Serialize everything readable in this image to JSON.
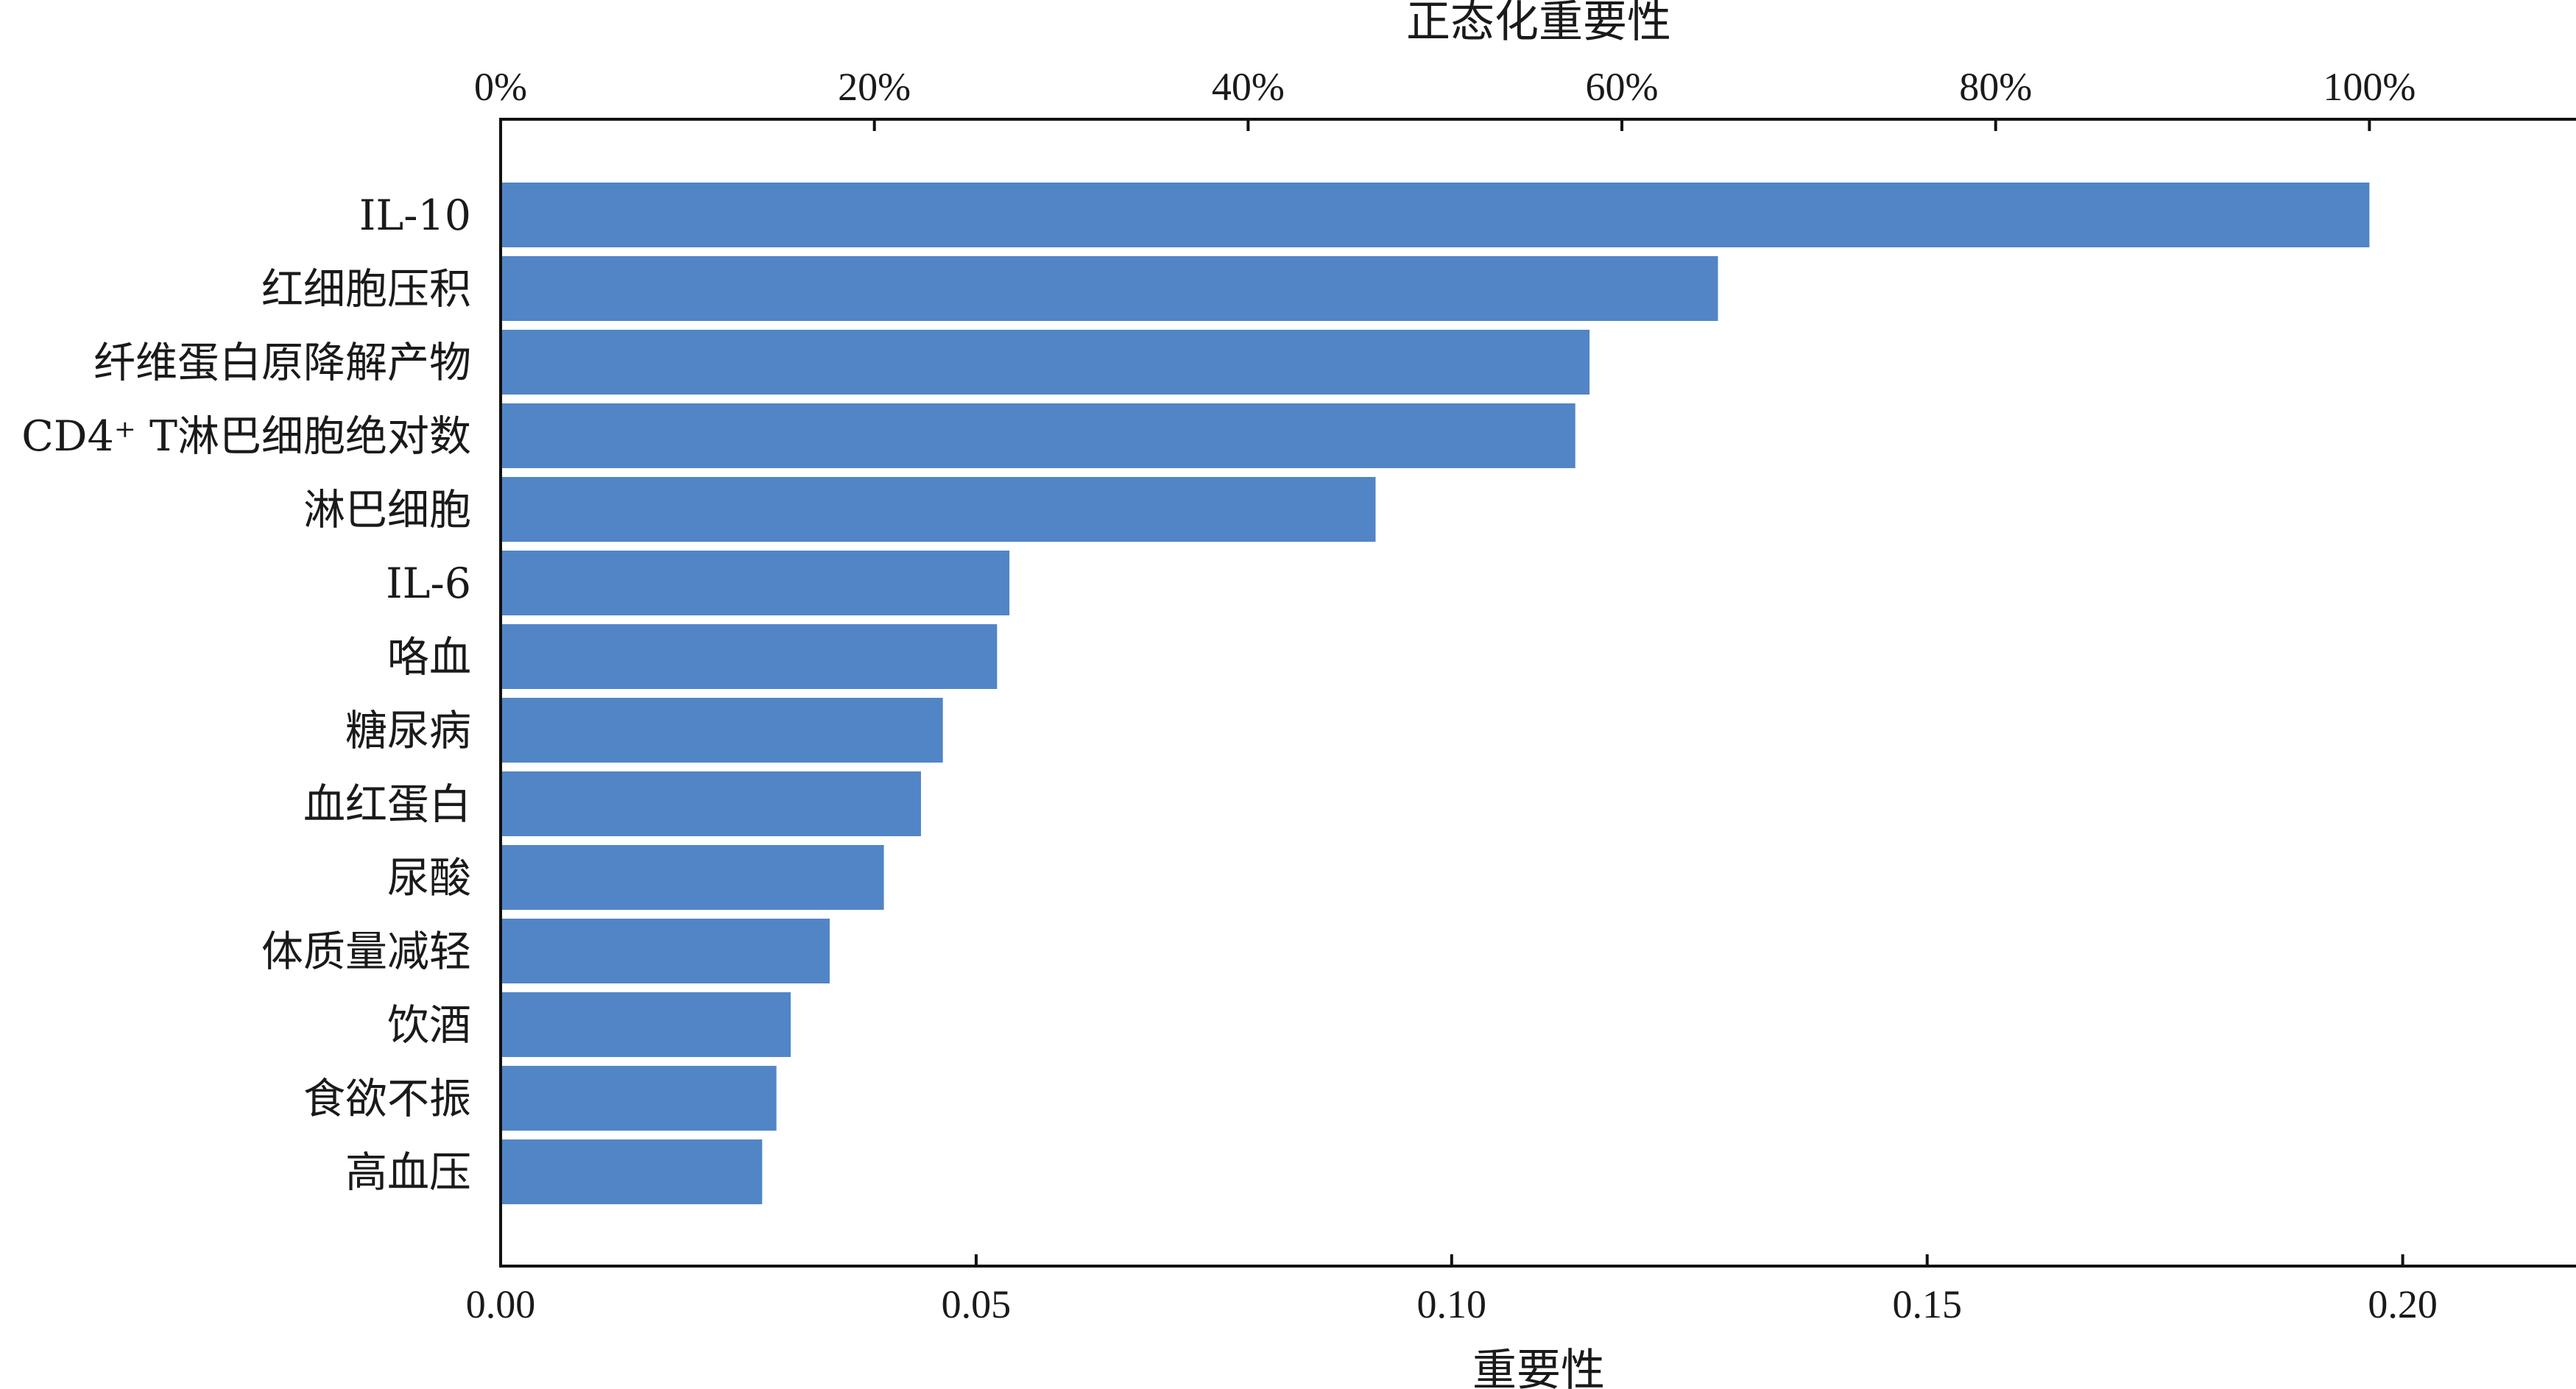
{
  "chart_data": {
    "type": "bar",
    "orientation": "horizontal",
    "bar_color": "#5185c6",
    "categories": [
      "IL-10",
      "红细胞压积",
      "纤维蛋白原降解产物",
      "CD4⁺ T淋巴细胞绝对数",
      "淋巴细胞",
      "IL-6",
      "咯血",
      "糖尿病",
      "血红蛋白",
      "尿酸",
      "体质量减轻",
      "饮酒",
      "食欲不振",
      "高血压"
    ],
    "values": [
      0.1965,
      0.128,
      0.1145,
      0.113,
      0.092,
      0.0535,
      0.0522,
      0.0465,
      0.0442,
      0.0403,
      0.0346,
      0.0305,
      0.029,
      0.0275
    ],
    "xlabel": "重要性",
    "x_ticks": [
      "0.00",
      "0.05",
      "0.10",
      "0.15",
      "0.20"
    ],
    "x_tick_values": [
      0,
      0.05,
      0.1,
      0.15,
      0.2
    ],
    "xlim": [
      0,
      0.218
    ],
    "top_xlabel": "正态化重要性",
    "top_ticks": [
      "0%",
      "20%",
      "40%",
      "60%",
      "80%",
      "100%"
    ],
    "top_tick_values": [
      0,
      20,
      40,
      60,
      80,
      100
    ],
    "top_max_value": 0.1965,
    "grid": false,
    "legend": "none"
  }
}
